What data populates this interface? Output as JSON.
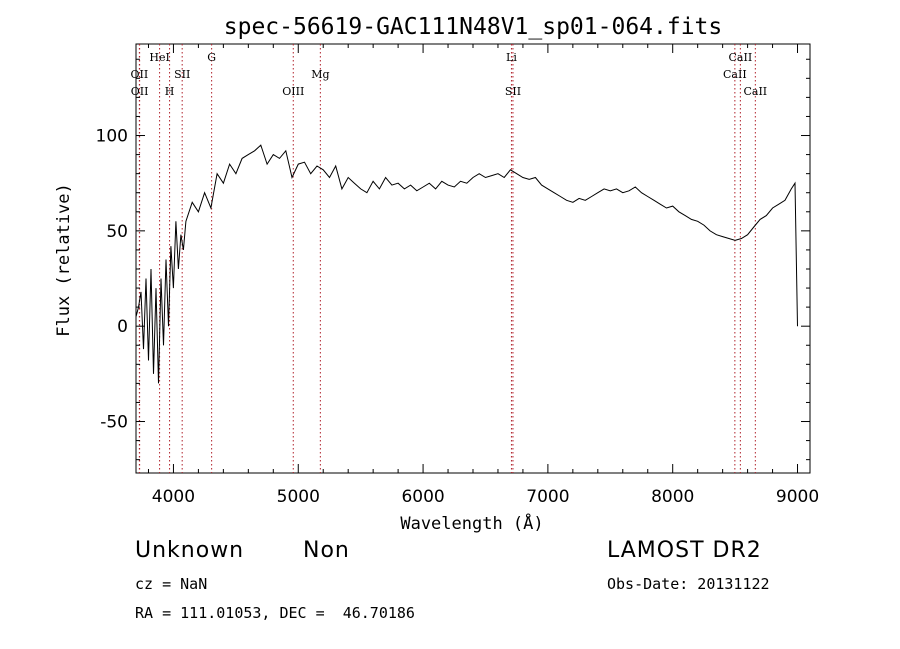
{
  "chart_data": {
    "type": "line",
    "title": "spec-56619-GAC111N48V1_sp01-064.fits",
    "xlabel": "Wavelength (Å)",
    "ylabel": "Flux (relative)",
    "xlim": [
      3700,
      9100
    ],
    "ylim": [
      -77,
      148
    ],
    "xticks": [
      4000,
      5000,
      6000,
      7000,
      8000,
      9000
    ],
    "yticks": [
      -50,
      0,
      50,
      100
    ],
    "grid": false,
    "series": [
      {
        "name": "spectrum",
        "x": [
          3700,
          3720,
          3740,
          3760,
          3780,
          3800,
          3820,
          3840,
          3860,
          3880,
          3900,
          3920,
          3940,
          3960,
          3980,
          4000,
          4020,
          4040,
          4060,
          4080,
          4100,
          4150,
          4200,
          4250,
          4300,
          4350,
          4400,
          4450,
          4500,
          4550,
          4600,
          4650,
          4700,
          4750,
          4800,
          4850,
          4900,
          4950,
          5000,
          5050,
          5100,
          5150,
          5200,
          5250,
          5300,
          5350,
          5400,
          5450,
          5500,
          5550,
          5600,
          5650,
          5700,
          5750,
          5800,
          5850,
          5900,
          5950,
          6000,
          6050,
          6100,
          6150,
          6200,
          6250,
          6300,
          6350,
          6400,
          6450,
          6500,
          6550,
          6600,
          6650,
          6700,
          6750,
          6800,
          6850,
          6900,
          6950,
          7000,
          7050,
          7100,
          7150,
          7200,
          7250,
          7300,
          7350,
          7400,
          7450,
          7500,
          7550,
          7600,
          7650,
          7700,
          7750,
          7800,
          7850,
          7900,
          7950,
          8000,
          8050,
          8100,
          8150,
          8200,
          8250,
          8300,
          8350,
          8400,
          8450,
          8500,
          8550,
          8600,
          8650,
          8700,
          8750,
          8800,
          8850,
          8900,
          8950,
          8980,
          9000
        ],
        "values": [
          5,
          10,
          18,
          -12,
          25,
          -18,
          30,
          -25,
          20,
          -30,
          25,
          -10,
          35,
          0,
          42,
          20,
          55,
          30,
          48,
          40,
          55,
          65,
          60,
          70,
          62,
          80,
          75,
          85,
          80,
          88,
          90,
          92,
          95,
          85,
          90,
          88,
          92,
          78,
          85,
          86,
          80,
          84,
          82,
          78,
          84,
          72,
          78,
          75,
          72,
          70,
          76,
          72,
          78,
          74,
          75,
          72,
          74,
          71,
          73,
          75,
          72,
          76,
          74,
          73,
          76,
          75,
          78,
          80,
          78,
          79,
          80,
          78,
          82,
          80,
          78,
          77,
          78,
          74,
          72,
          70,
          68,
          66,
          65,
          67,
          66,
          68,
          70,
          72,
          71,
          72,
          70,
          71,
          73,
          70,
          68,
          66,
          64,
          62,
          63,
          60,
          58,
          56,
          55,
          53,
          50,
          48,
          47,
          46,
          45,
          46,
          48,
          52,
          56,
          58,
          62,
          64,
          66,
          72,
          75,
          0
        ]
      }
    ],
    "lines": [
      {
        "label": "OII",
        "x": 3727,
        "row": 2
      },
      {
        "label": "OII",
        "x": 3729,
        "row": 3
      },
      {
        "label": "HeI",
        "x": 3889,
        "row": 1
      },
      {
        "label": "H",
        "x": 3969,
        "row": 3
      },
      {
        "label": "SII",
        "x": 4070,
        "row": 2
      },
      {
        "label": "G",
        "x": 4306,
        "row": 1
      },
      {
        "label": "OIII",
        "x": 4960,
        "row": 3
      },
      {
        "label": "Mg",
        "x": 5177,
        "row": 2
      },
      {
        "label": "Li",
        "x": 6708,
        "row": 1
      },
      {
        "label": "SII",
        "x": 6720,
        "row": 3
      },
      {
        "label": "CaII",
        "x": 8498,
        "row": 2
      },
      {
        "label": "CaII",
        "x": 8542,
        "row": 1
      },
      {
        "label": "CaII",
        "x": 8662,
        "row": 3
      }
    ]
  },
  "info": {
    "class": "Unknown",
    "subclass": "Non",
    "cz": "cz = NaN",
    "coords": "RA = 111.01053, DEC =  46.70186",
    "survey": "LAMOST DR2",
    "obs_date": "Obs-Date: 20131122"
  }
}
